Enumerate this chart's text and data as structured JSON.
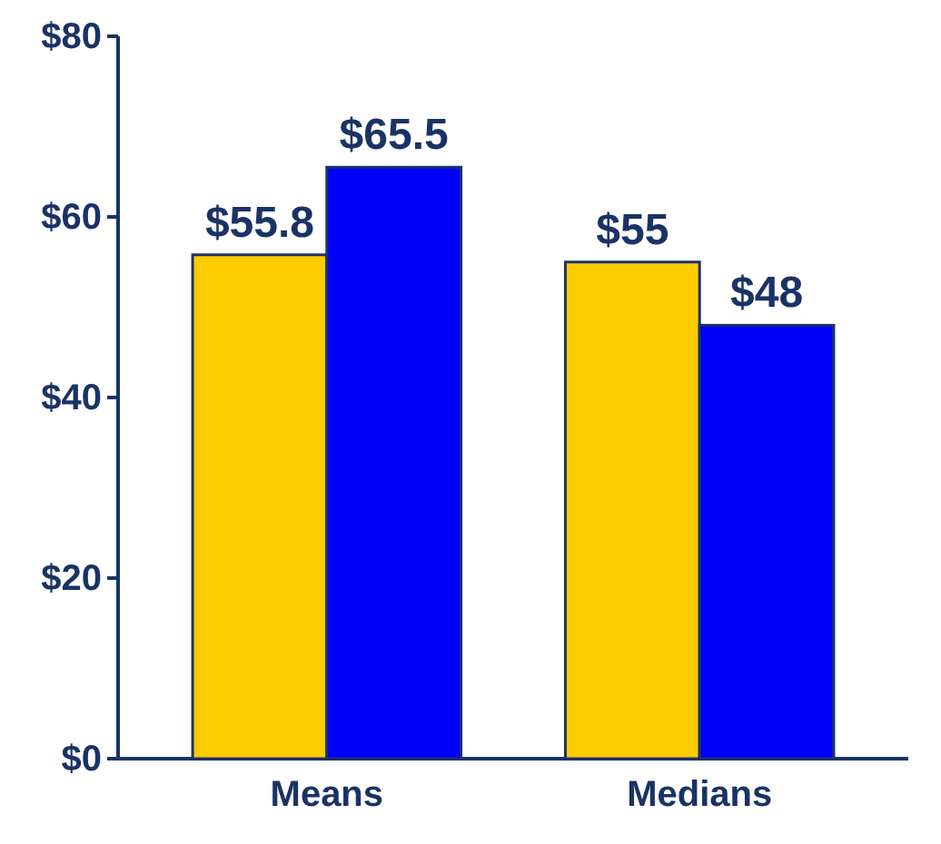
{
  "chart_data": {
    "type": "bar",
    "categories": [
      "Means",
      "Medians"
    ],
    "series": [
      {
        "color": "#ffcc00",
        "values": [
          55.8,
          55
        ],
        "value_labels": [
          "$55.8",
          "$55"
        ]
      },
      {
        "color": "#0000ff",
        "values": [
          65.5,
          48
        ],
        "value_labels": [
          "$65.5",
          "$48"
        ]
      }
    ],
    "ylim": [
      0,
      80
    ],
    "yticks": [
      {
        "value": 0,
        "label": "$0"
      },
      {
        "value": 20,
        "label": "$20"
      },
      {
        "value": 40,
        "label": "$40"
      },
      {
        "value": 60,
        "label": "$60"
      },
      {
        "value": 80,
        "label": "$80"
      }
    ],
    "grid": false
  }
}
